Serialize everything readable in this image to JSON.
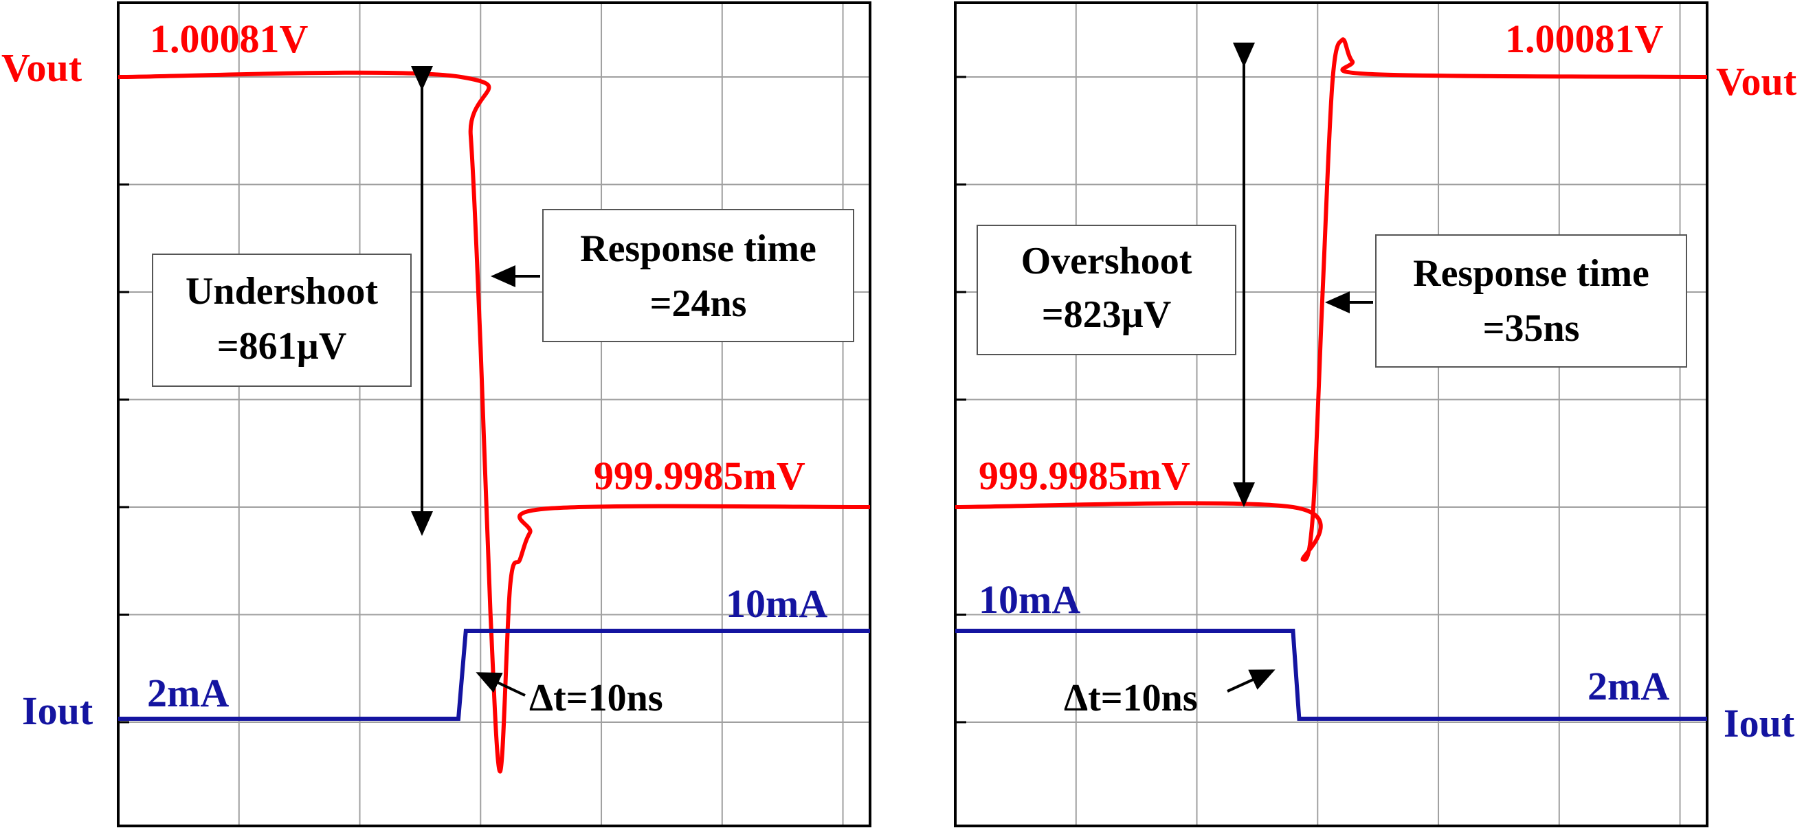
{
  "colors": {
    "vout": "#ff0000",
    "iout": "#1414a0",
    "grid": "#a0a0a0",
    "frame": "#000000",
    "annotation": "#000000"
  },
  "chart_data": [
    {
      "type": "line",
      "title": "",
      "grid": true,
      "series": [
        {
          "name": "Vout",
          "points": [
            [
              0,
              1.00081
            ],
            [
              2.78,
              1.00081
            ],
            [
              2.86,
              1.0007
            ],
            [
              2.94,
              1.0003
            ],
            [
              3.02,
              0.9998
            ],
            [
              3.1,
              0.9995
            ],
            [
              3.18,
              0.99985
            ],
            [
              3.26,
              0.9999
            ],
            [
              3.34,
              0.99995
            ],
            [
              3.5,
              0.999996
            ],
            [
              6.1,
              0.9999985
            ]
          ]
        },
        {
          "name": "Iout",
          "points": [
            [
              0,
              2
            ],
            [
              2.76,
              2
            ],
            [
              2.82,
              10
            ],
            [
              6.1,
              10
            ]
          ]
        }
      ],
      "labels": {
        "vout_side": "Vout",
        "iout_side": "Iout",
        "v_high": "1.00081V",
        "v_low": "999.9985mV",
        "i_high": "10mA",
        "i_low": "2mA",
        "delta_label": "Undershoot",
        "delta_value": "=861µV",
        "response_label": "Response time",
        "response_value": "=24ns",
        "step_time": "Δt=10ns"
      }
    },
    {
      "type": "line",
      "title": "",
      "grid": true,
      "series": [
        {
          "name": "Vout",
          "points": [
            [
              0,
              0.9999985
            ],
            [
              2.74,
              0.9999985
            ],
            [
              2.82,
              0.9999
            ],
            [
              2.9,
              0.99998
            ],
            [
              2.98,
              1.0004
            ],
            [
              3.06,
              1.0008
            ],
            [
              3.14,
              1.00088
            ],
            [
              3.22,
              1.00084
            ],
            [
              3.4,
              1.000815
            ],
            [
              6.1,
              1.00081
            ]
          ]
        },
        {
          "name": "Iout",
          "points": [
            [
              0,
              10
            ],
            [
              2.74,
              10
            ],
            [
              2.79,
              2
            ],
            [
              6.1,
              2
            ]
          ]
        }
      ],
      "labels": {
        "vout_side": "Vout",
        "iout_side": "Iout",
        "v_high": "1.00081V",
        "v_low": "999.9985mV",
        "i_high": "10mA",
        "i_low": "2mA",
        "delta_label": "Overshoot",
        "delta_value": "=823µV",
        "response_label": "Response time",
        "response_value": "=35ns",
        "step_time": "Δt=10ns"
      }
    }
  ]
}
